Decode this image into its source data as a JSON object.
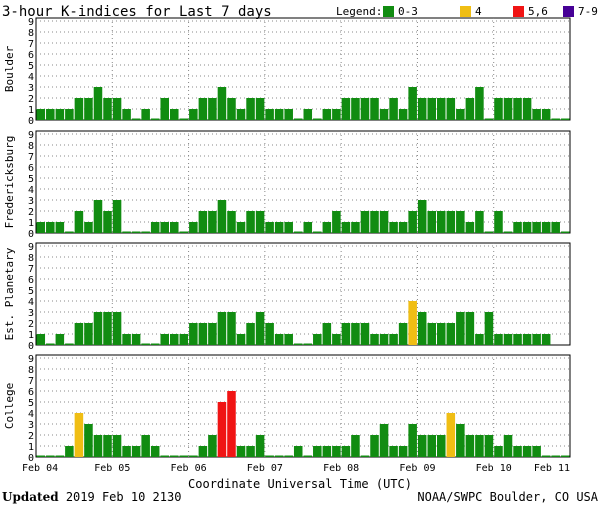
{
  "chart_data": {
    "type": "bar",
    "title": "3-hour K-indices for Last 7 days",
    "legend": {
      "label": "Legend:",
      "items": [
        {
          "label": "0-3",
          "color": "#118c11"
        },
        {
          "label": "4",
          "color": "#f0be14"
        },
        {
          "label": "5,6",
          "color": "#f01414"
        },
        {
          "label": "7-9",
          "color": "#460096"
        }
      ]
    },
    "colors": {
      "low": "#118c11",
      "four": "#f0be14",
      "mid": "#f01414",
      "high": "#460096"
    },
    "y_ticks": [
      "0",
      "1",
      "2",
      "3",
      "4",
      "5",
      "6",
      "7",
      "8",
      "9"
    ],
    "ylim": [
      0,
      9
    ],
    "x_tick_labels": [
      "Feb 04",
      "Feb 05",
      "Feb 06",
      "Feb 07",
      "Feb 08",
      "Feb 09",
      "Feb 10",
      "Feb 11"
    ],
    "xlabel": "Coordinate Universal Time (UTC)",
    "interval_hours": 3,
    "series": [
      {
        "name": "Boulder",
        "values": [
          1,
          1,
          1,
          1,
          2,
          2,
          3,
          2,
          2,
          1,
          0,
          1,
          0,
          2,
          1,
          0,
          1,
          2,
          2,
          3,
          2,
          1,
          2,
          2,
          1,
          1,
          1,
          0,
          1,
          0,
          1,
          1,
          2,
          2,
          2,
          2,
          1,
          2,
          1,
          3,
          2,
          2,
          2,
          2,
          1,
          2,
          3,
          0,
          2,
          2,
          2,
          2,
          1,
          1,
          0,
          0
        ]
      },
      {
        "name": "Fredericksburg",
        "values": [
          1,
          1,
          1,
          0,
          2,
          1,
          3,
          2,
          3,
          0,
          0,
          0,
          1,
          1,
          1,
          0,
          1,
          2,
          2,
          3,
          2,
          1,
          2,
          2,
          1,
          1,
          1,
          0,
          1,
          0,
          1,
          2,
          1,
          1,
          2,
          2,
          2,
          1,
          1,
          2,
          3,
          2,
          2,
          2,
          2,
          1,
          2,
          0,
          2,
          0,
          1,
          1,
          1,
          1,
          1,
          0
        ]
      },
      {
        "name": "Est. Planetary",
        "values": [
          1,
          0,
          1,
          0,
          2,
          2,
          3,
          3,
          3,
          1,
          1,
          0,
          0,
          1,
          1,
          1,
          2,
          2,
          2,
          3,
          3,
          1,
          2,
          3,
          2,
          1,
          1,
          0,
          0,
          1,
          2,
          1,
          2,
          2,
          2,
          1,
          1,
          1,
          2,
          4,
          3,
          2,
          2,
          2,
          3,
          3,
          1,
          3,
          1,
          1,
          1,
          1,
          1,
          1
        ]
      },
      {
        "name": "College",
        "values": [
          0,
          0,
          0,
          1,
          4,
          3,
          2,
          2,
          2,
          1,
          1,
          2,
          1,
          0,
          0,
          0,
          0,
          1,
          2,
          5,
          6,
          1,
          1,
          2,
          0,
          0,
          0,
          1,
          0,
          1,
          1,
          1,
          1,
          2,
          0,
          2,
          3,
          1,
          1,
          3,
          2,
          2,
          2,
          4,
          3,
          2,
          2,
          2,
          1,
          2,
          1,
          1,
          1,
          0,
          0,
          0
        ]
      }
    ]
  },
  "footer": {
    "updated_label": "Updated",
    "updated_value": "2019 Feb 10 2130",
    "source": "NOAA/SWPC Boulder, CO USA"
  }
}
